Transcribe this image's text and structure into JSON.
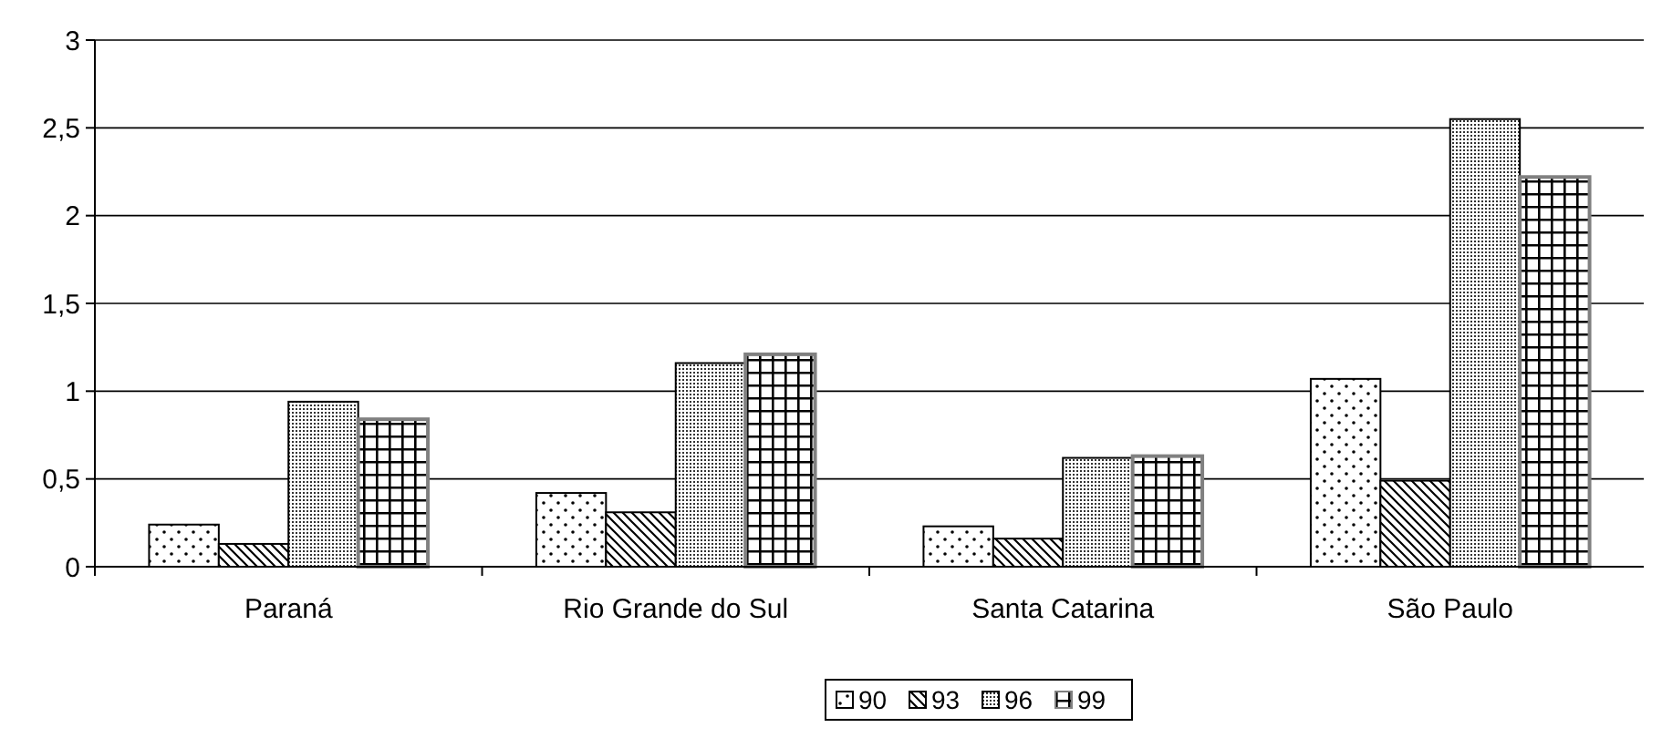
{
  "chart_data": {
    "type": "bar",
    "categories": [
      "Paraná",
      "Rio Grande do Sul",
      "Santa Catarina",
      "São Paulo"
    ],
    "series": [
      {
        "name": "90",
        "color": "#000000",
        "values": [
          0.24,
          0.42,
          0.23,
          1.07
        ]
      },
      {
        "name": "93",
        "color": "#000000",
        "values": [
          0.13,
          0.31,
          0.16,
          0.49
        ]
      },
      {
        "name": "96",
        "color": "#000000",
        "values": [
          0.94,
          1.16,
          0.62,
          2.55
        ]
      },
      {
        "name": "99",
        "color": "#808080",
        "values": [
          0.84,
          1.21,
          0.63,
          2.22
        ]
      }
    ],
    "ylim": [
      0,
      3
    ],
    "yticks": [
      0,
      {
        "value": 0.5,
        "label": "0,5"
      },
      1,
      {
        "value": 1.5,
        "label": "1,5"
      },
      2,
      {
        "value": 2.5,
        "label": "2,5"
      },
      3
    ],
    "grid": "y",
    "legend": "bottom"
  }
}
